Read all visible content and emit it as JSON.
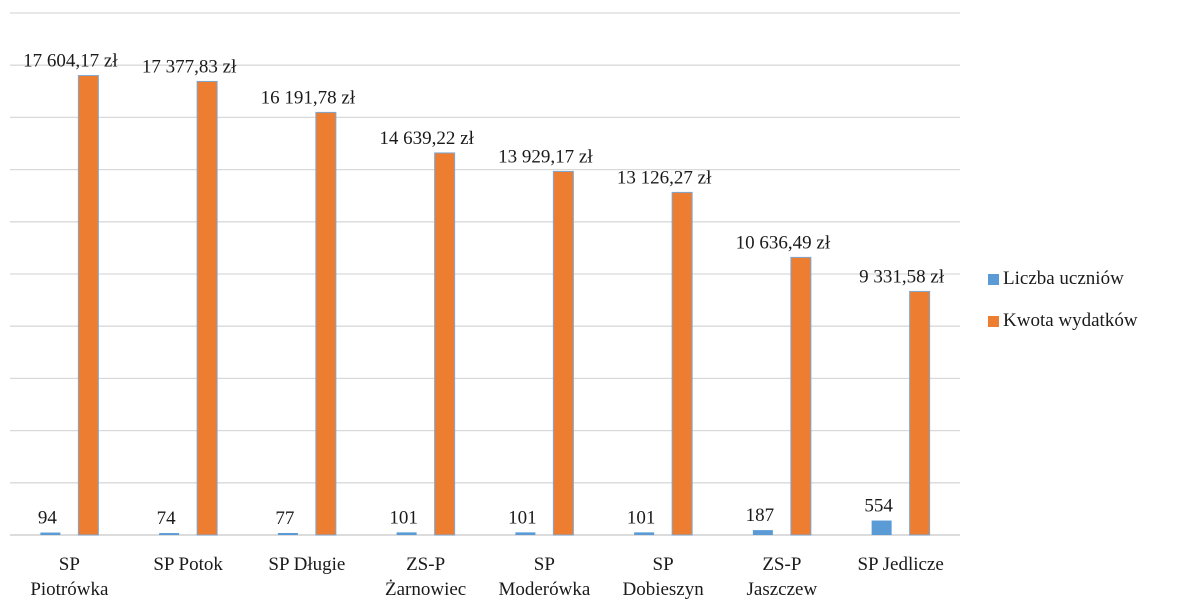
{
  "chart_data": {
    "type": "bar",
    "categories": [
      [
        "SP",
        "Piotrówka"
      ],
      [
        "SP Potok"
      ],
      [
        "SP Długie"
      ],
      [
        "ZS-P",
        "Żarnowiec"
      ],
      [
        "SP",
        "Moderówka"
      ],
      [
        "SP",
        "Dobieszyn"
      ],
      [
        "ZS-P",
        "Jaszczew"
      ],
      [
        "SP Jedlicze"
      ]
    ],
    "series": [
      {
        "name": "Liczba uczniów",
        "color": "#5b9bd5",
        "values": [
          94,
          74,
          77,
          101,
          101,
          101,
          187,
          554
        ],
        "labels": [
          "94",
          "74",
          "77",
          "101",
          "101",
          "101",
          "187",
          "554"
        ]
      },
      {
        "name": "Kwota wydatków",
        "color": "#ed7d31",
        "values": [
          17604.17,
          17377.83,
          16191.78,
          14639.22,
          13929.17,
          13126.27,
          10636.49,
          9331.58
        ],
        "labels": [
          "17 604,17 zł",
          "17 377,83 zł",
          "16 191,78 zł",
          "14 639,22 zł",
          "13 929,17 zł",
          "13 126,27 zł",
          "10 636,49 zł",
          "9 331,58 zł"
        ]
      }
    ],
    "ylim": [
      0,
      20000
    ],
    "grid": true,
    "legend_position": "right",
    "gridline_color": "#d9d9d9"
  }
}
